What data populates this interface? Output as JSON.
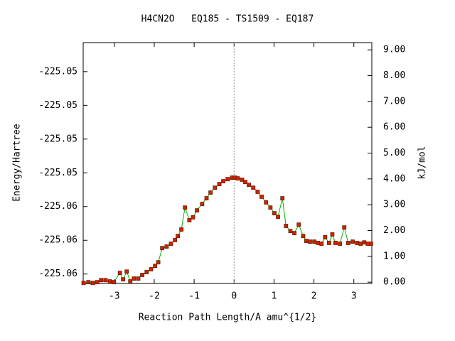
{
  "chart_data": {
    "type": "line",
    "title": "H4CN2O   EQ185 - TS1509 - EQ187",
    "x_label": "Reaction Path Length/A amu^{1/2}",
    "y_label": "Energy/Hartree",
    "y2_label": "kJ/mol",
    "x": [
      -3.77,
      -3.65,
      -3.54,
      -3.43,
      -3.33,
      -3.22,
      -3.11,
      -3.01,
      -2.86,
      -2.78,
      -2.69,
      -2.6,
      -2.51,
      -2.4,
      -2.3,
      -2.19,
      -2.08,
      -1.98,
      -1.9,
      -1.8,
      -1.69,
      -1.58,
      -1.48,
      -1.41,
      -1.32,
      -1.23,
      -1.12,
      -1.03,
      -0.93,
      -0.8,
      -0.69,
      -0.59,
      -0.48,
      -0.37,
      -0.27,
      -0.16,
      -0.05,
      0.02,
      0.09,
      0.2,
      0.28,
      0.37,
      0.48,
      0.59,
      0.69,
      0.8,
      0.91,
      1.01,
      1.1,
      1.21,
      1.3,
      1.41,
      1.51,
      1.62,
      1.73,
      1.81,
      1.9,
      2.01,
      2.1,
      2.19,
      2.28,
      2.38,
      2.46,
      2.54,
      2.65,
      2.76,
      2.86,
      2.97,
      3.08,
      3.17,
      3.26,
      3.35,
      3.43
    ],
    "series": [
      {
        "line_color": "#00b000",
        "color": "#d42000",
        "edge_color": "#602000",
        "axis": "y2",
        "values": [
          -0.03,
          0.0,
          -0.03,
          0.0,
          0.08,
          0.08,
          0.03,
          0.0,
          0.36,
          0.11,
          0.41,
          0.03,
          0.14,
          0.14,
          0.28,
          0.39,
          0.5,
          0.63,
          0.77,
          1.32,
          1.38,
          1.49,
          1.63,
          1.79,
          2.04,
          2.89,
          2.4,
          2.51,
          2.78,
          3.03,
          3.25,
          3.47,
          3.66,
          3.8,
          3.91,
          3.99,
          4.05,
          4.05,
          4.02,
          3.97,
          3.88,
          3.77,
          3.66,
          3.5,
          3.31,
          3.09,
          2.89,
          2.67,
          2.53,
          3.25,
          2.18,
          1.98,
          1.9,
          2.23,
          1.79,
          1.6,
          1.57,
          1.57,
          1.52,
          1.49,
          1.74,
          1.52,
          1.85,
          1.52,
          1.49,
          2.12,
          1.52,
          1.57,
          1.52,
          1.49,
          1.54,
          1.49,
          1.49
        ]
      }
    ],
    "xlim": [
      -3.78,
      3.45
    ],
    "xticks": [
      -3,
      -2,
      -1,
      0,
      1,
      2,
      3
    ],
    "ylim": [
      -225.05634,
      -225.05277
    ],
    "yticks": [
      {
        "value": -225.0562,
        "label": "-225.06"
      },
      {
        "value": -225.0557,
        "label": "-225.06"
      },
      {
        "value": -225.0552,
        "label": "-225.06"
      },
      {
        "value": -225.0547,
        "label": "-225.05"
      },
      {
        "value": -225.0542,
        "label": "-225.05"
      },
      {
        "value": -225.0537,
        "label": "-225.05"
      },
      {
        "value": -225.0532,
        "label": "-225.05"
      }
    ],
    "y2lim": [
      -0.05,
      9.28
    ],
    "y2ticks": [
      {
        "value": 0,
        "label": "0.00"
      },
      {
        "value": 1,
        "label": "1.00"
      },
      {
        "value": 2,
        "label": "2.00"
      },
      {
        "value": 3,
        "label": "3.00"
      },
      {
        "value": 4,
        "label": "4.00"
      },
      {
        "value": 5,
        "label": "5.00"
      },
      {
        "value": 6,
        "label": "6.00"
      },
      {
        "value": 7,
        "label": "7.00"
      },
      {
        "value": 8,
        "label": "8.00"
      },
      {
        "value": 9,
        "label": "9.00"
      }
    ]
  }
}
